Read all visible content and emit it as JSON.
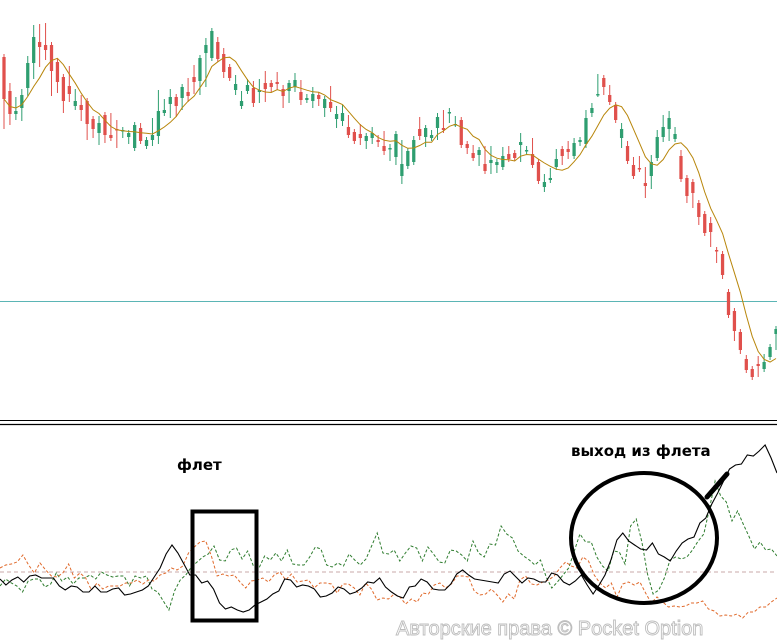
{
  "chart_data": {
    "type": "candlestick",
    "axes_shown": false,
    "grid": false,
    "price": {
      "horizontal_level": 119,
      "candles": [
        [
          363,
          321,
          363,
          294
        ],
        [
          329,
          306,
          334,
          298
        ],
        [
          306,
          309,
          320,
          303
        ],
        [
          312,
          325,
          328,
          302
        ],
        [
          332,
          357,
          361,
          327
        ],
        [
          357,
          383,
          392,
          344
        ],
        [
          378,
          373,
          393,
          356
        ],
        [
          375,
          370,
          394,
          363
        ],
        [
          375,
          349,
          358,
          327
        ],
        [
          358,
          338,
          341,
          330
        ],
        [
          343,
          319,
          327,
          310
        ],
        [
          334,
          326,
          351,
          321
        ],
        [
          314,
          319,
          328,
          313
        ],
        [
          315,
          310,
          322,
          302
        ],
        [
          319,
          296,
          307,
          283
        ],
        [
          301,
          291,
          301,
          285
        ],
        [
          287,
          297,
          301,
          278
        ],
        [
          305,
          285,
          305,
          280
        ],
        [
          285,
          282,
          304,
          285
        ],
        [
          291,
          290,
          297,
          275
        ],
        [
          290,
          290,
          290,
          285
        ],
        [
          283,
          287,
          284,
          279
        ],
        [
          272,
          295,
          295,
          276
        ],
        [
          292,
          279,
          294,
          290
        ],
        [
          274,
          280,
          275,
          275
        ],
        [
          280,
          285,
          299,
          277
        ],
        [
          284,
          309,
          327,
          279
        ],
        [
          307,
          310,
          318,
          307
        ],
        [
          316,
          323,
          328,
          305
        ],
        [
          323,
          314,
          321,
          306
        ],
        [
          322,
          333,
          330,
          313
        ],
        [
          328,
          324,
          339,
          321
        ],
        [
          343,
          338,
          352,
          329
        ],
        [
          339,
          362,
          361,
          328
        ],
        [
          367,
          375,
          379,
          336
        ],
        [
          362,
          389,
          382,
          381
        ],
        [
          378,
          361,
          380,
          367
        ],
        [
          366,
          348,
          369,
          345
        ],
        [
          353,
          342,
          348,
          342
        ],
        [
          330,
          336,
          342,
          328
        ],
        [
          314,
          319,
          326,
          314
        ],
        [
          329,
          335,
          338,
          329
        ],
        [
          332,
          317,
          336,
          316
        ],
        [
          328,
          330,
          338,
          320
        ],
        [
          337,
          331,
          346,
          321
        ],
        [
          337,
          333,
          333,
          331
        ],
        [
          338,
          336,
          345,
          333
        ],
        [
          331,
          324,
          332,
          315
        ],
        [
          329,
          337,
          336,
          320
        ],
        [
          333,
          340,
          344,
          331
        ],
        [
          328,
          320,
          337,
          318
        ],
        [
          320,
          322,
          323,
          323
        ],
        [
          319,
          326,
          330,
          315
        ],
        [
          325,
          321,
          322,
          317
        ],
        [
          312,
          321,
          321,
          306
        ],
        [
          318,
          312,
          331,
          311
        ],
        [
          301,
          306,
          311,
          295
        ],
        [
          299,
          307,
          312,
          297
        ],
        [
          293,
          285,
          302,
          286
        ],
        [
          288,
          279,
          287,
          280
        ],
        [
          286,
          282,
          293,
          278
        ],
        [
          279,
          284,
          284,
          274
        ],
        [
          282,
          287,
          290,
          279
        ],
        [
          280,
          278,
          282,
          276
        ],
        [
          274,
          269,
          286,
          268
        ],
        [
          272,
          272,
          273,
          262
        ],
        [
          263,
          286,
          280,
          258
        ],
        [
          244,
          256,
          277,
          239
        ],
        [
          254,
          269,
          267,
          255
        ],
        [
          258,
          280,
          281,
          260
        ],
        [
          291,
          284,
          300,
          283
        ],
        [
          283,
          292,
          290,
          276
        ],
        [
          282,
          285,
          287,
          285
        ],
        [
          292,
          303,
          304,
          283
        ],
        [
          292,
          290,
          307,
          291
        ],
        [
          307,
          308,
          309,
          300
        ],
        [
          296,
          296,
          296,
          301
        ],
        [
          300,
          275,
          297,
          282
        ],
        [
          276,
          272,
          274,
          269
        ],
        [
          267,
          262,
          272,
          268
        ],
        [
          265,
          270,
          265,
          257
        ],
        [
          256,
          249,
          271,
          252
        ],
        [
          257,
          260,
          271,
          249
        ],
        [
          255,
          258,
          258,
          250
        ],
        [
          253,
          264,
          270,
          257
        ],
        [
          266,
          261,
          271,
          262
        ],
        [
          267,
          262,
          264,
          264
        ],
        [
          275,
          278,
          284,
          261
        ],
        [
          269,
          270,
          271,
          270
        ],
        [
          266,
          255,
          279,
          256
        ],
        [
          258,
          239,
          255,
          245
        ],
        [
          233,
          238,
          243,
          231
        ],
        [
          240,
          242,
          249,
          245
        ],
        [
          253,
          261,
          268,
          258
        ],
        [
          271,
          264,
          270,
          258
        ],
        [
          271,
          268,
          276,
          264
        ],
        [
          264,
          277,
          279,
          271
        ],
        [
          278,
          280,
          279,
          277
        ],
        [
          276,
          302,
          307,
          275
        ],
        [
          307,
          312,
          314,
          306
        ],
        [
          326,
          326,
          328,
          343
        ],
        [
          342,
          333,
          328,
          334
        ],
        [
          325,
          318,
          325,
          332
        ],
        [
          315,
          300,
          302,
          304
        ],
        [
          282,
          291,
          294,
          275
        ],
        [
          274,
          259,
          276,
          264
        ],
        [
          255,
          244,
          257,
          260
        ],
        [
          252,
          251,
          261,
          255
        ],
        [
          237,
          234,
          250,
          225
        ],
        [
          244,
          258,
          262,
          234
        ],
        [
          262,
          283,
          287,
          264
        ],
        [
          283,
          293,
          302,
          281
        ],
        [
          291,
          302,
          306,
          282
        ],
        [
          281,
          286,
          290,
          283
        ],
        [
          264,
          241,
          256,
          267
        ],
        [
          242,
          224,
          238,
          220
        ],
        [
          238,
          227,
          238,
          215
        ],
        [
          217,
          203,
          212,
          198
        ],
        [
          206,
          187,
          194,
          196
        ],
        [
          197,
          188,
          200,
          176
        ],
        [
          170,
          169,
          166,
          160
        ],
        [
          166,
          145,
          151,
          144
        ],
        [
          128,
          105,
          107,
          111
        ],
        [
          109,
          89,
          97,
          82
        ],
        [
          88,
          70,
          75,
          69
        ],
        [
          61,
          50,
          62,
          54
        ],
        [
          51,
          43,
          51,
          45
        ],
        [
          56,
          54,
          61,
          46
        ],
        [
          51,
          58,
          59,
          63
        ],
        [
          63,
          73,
          72,
          70
        ],
        [
          86,
          91,
          91,
          73
        ]
      ]
    },
    "oscillator": {
      "solid_black": [
        -7.0,
        -13.0,
        -8.0,
        -5.0,
        -10.0,
        -4.0,
        -3.0,
        -6.0,
        -6.0,
        -6.0,
        -14.0,
        -18.0,
        -14.0,
        -15.0,
        -20.0,
        -20.0,
        -14.0,
        -20.0,
        -20.0,
        -17.0,
        -16.0,
        -23.0,
        -22.0,
        -20.0,
        -18.0,
        -14.0,
        -5.0,
        4.0,
        18.0,
        27.0,
        19.0,
        8.0,
        -3.0,
        -3.0,
        -11.0,
        -9.0,
        -17.0,
        -31.0,
        -37.0,
        -35.0,
        -38.0,
        -40.0,
        -38.0,
        -33.0,
        -30.0,
        -27.0,
        -22.0,
        -19.0,
        -7.0,
        -8.0,
        -15.0,
        -13.0,
        -14.0,
        -17.0,
        -25.0,
        -24.0,
        -21.0,
        -15.0,
        -17.0,
        -22.0,
        -20.0,
        -16.0,
        -10.0,
        -11.0,
        -6.0,
        -15.0,
        -20.0,
        -24.0,
        -26.0,
        -15.0,
        -14.0,
        -7.0,
        -10.0,
        -17.0,
        -18.0,
        -18.0,
        -12.0,
        -2.0,
        2.0,
        -3.0,
        -7.0,
        -8.0,
        -9.0,
        -10.0,
        -11.0,
        -2.0,
        1.0,
        -5.0,
        -11.0,
        -6.0,
        -7.0,
        -10.0,
        -10.0,
        -1.0,
        -3.0,
        -10.0,
        -13.0,
        -9.0,
        -3.0,
        -13.0,
        -22.0,
        -13.0,
        -3.0,
        12.0,
        32.0,
        39.0,
        31.0,
        27.0,
        23.0,
        22.0,
        29.0,
        18.0,
        15.0,
        11.0,
        21.0,
        29.0,
        33.0,
        35.0,
        49.0,
        54.0,
        68.0,
        79.0,
        91.0,
        103.0,
        107.0,
        108.0,
        117.0,
        116.0,
        121.0,
        127.0,
        114.0,
        99.0
      ],
      "dashed_green": [
        -14.0,
        -7.0,
        -11.0,
        -14.0,
        -20.0,
        -9.0,
        -7.0,
        -7.0,
        -15.0,
        -12.0,
        -1.0,
        -9.0,
        -5.0,
        -12.0,
        -6.0,
        -6.0,
        -3.0,
        -7.0,
        0.0,
        -3.0,
        -5.0,
        -4.0,
        -4.0,
        -14.0,
        -4.0,
        -6.0,
        -4.0,
        -17.0,
        -20.0,
        -29.0,
        -38.0,
        -19.0,
        -8.0,
        -3.0,
        5.0,
        10.0,
        15.0,
        18.0,
        26.0,
        12.0,
        11.0,
        22.0,
        24.0,
        13.0,
        21.0,
        6.0,
        4.0,
        16.0,
        12.0,
        19.0,
        11.0,
        22.0,
        8.0,
        7.0,
        7.0,
        15.0,
        25.0,
        23.0,
        7.0,
        5.0,
        9.0,
        6.0,
        18.0,
        12.0,
        7.0,
        13.0,
        26.0,
        39.0,
        19.0,
        18.0,
        22.0,
        11.0,
        19.0,
        26.0,
        24.0,
        11.0,
        25.0,
        18.0,
        10.0,
        9.0,
        22.0,
        21.0,
        17.0,
        11.0,
        31.0,
        19.0,
        15.0,
        28.0,
        27.0,
        46.0,
        38.0,
        34.0,
        21.0,
        16.0,
        12.0,
        7.0,
        12.0,
        -5.0,
        -16.0,
        -10.0,
        -3.0,
        4.0,
        21.0,
        38.0,
        30.0,
        30.0,
        15.0,
        6.0,
        1.0,
        21.0,
        20.0,
        8.0,
        46.0,
        53.0,
        30.0,
        -2.0,
        -22.0,
        -18.0,
        -6.0,
        12.0,
        15.0,
        13.0,
        15.0,
        22.0,
        31.0,
        38.0,
        63.0,
        91.0,
        76.0,
        70.0,
        51.0,
        61.0,
        48.0,
        36.0,
        23.0,
        30.0,
        22.0,
        23.0,
        16.0
      ],
      "dashed_orange": [
        4.0,
        7.0,
        8.0,
        10.0,
        17.0,
        7.0,
        -1.0,
        9.0,
        2.0,
        -4.0,
        -5.0,
        -1.0,
        8.0,
        -6.0,
        -1.0,
        -6.0,
        -18.0,
        -11.0,
        -17.0,
        -14.0,
        -14.0,
        -14.0,
        -11.0,
        -11.0,
        -8.0,
        -12.0,
        -8.0,
        -9.0,
        -3.0,
        -1.0,
        4.0,
        2.0,
        6.0,
        19.0,
        25.0,
        30.0,
        31.0,
        16.0,
        -4.0,
        -2.0,
        -4.0,
        -3.0,
        -10.0,
        -16.0,
        -9.0,
        -8.0,
        -6.0,
        -10.0,
        -3.0,
        0.0,
        -8.0,
        -2.0,
        -10.0,
        -9.0,
        -8.0,
        -16.0,
        -11.0,
        -11.0,
        -12.0,
        -21.0,
        -12.0,
        -12.0,
        -16.0,
        -23.0,
        -11.0,
        -17.0,
        -28.0,
        -26.0,
        -27.0,
        -22.0,
        -25.0,
        -32.0,
        -27.0,
        -30.0,
        -21.0,
        -22.0,
        -13.0,
        -11.0,
        -16.0,
        -12.0,
        -4.0,
        -4.0,
        -5.0,
        -19.0,
        -23.0,
        -22.0,
        -17.0,
        -23.0,
        -30.0,
        -22.0,
        -27.0,
        -8.0,
        -4.0,
        -12.0,
        -13.0,
        -10.0,
        -8.0,
        -4.0,
        4.0,
        10.0,
        6.0,
        4.0,
        15.0,
        11.0,
        -3.0,
        -11.0,
        -16.0,
        -11.0,
        -25.0,
        -12.0,
        -10.0,
        -13.0,
        -10.0,
        -21.0,
        -31.0,
        -25.0,
        -30.0,
        -35.0,
        -34.0,
        -35.0,
        -34.0,
        -31.0,
        -31.0,
        -29.0,
        -37.0,
        -39.0,
        -44.0,
        -43.0,
        -44.0,
        -42.0,
        -46.0,
        -40.0,
        -40.0,
        -35.0,
        -35.0,
        -30.0,
        -26.0
      ]
    },
    "annotations": [
      {
        "text": "флет"
      },
      {
        "text": "выход из флета"
      }
    ],
    "watermark": "Авторские права © Pocket Option",
    "colors": {
      "bull": "#2e9e70",
      "bear": "#e0504c",
      "moving_average": "#b8860b",
      "level_line": "#5bb5b5",
      "oscillator_main": "#000000",
      "oscillator_green": "#2f7d2f",
      "oscillator_orange": "#e06a2c",
      "oscillator_baseline": "#c8a8a8"
    }
  }
}
